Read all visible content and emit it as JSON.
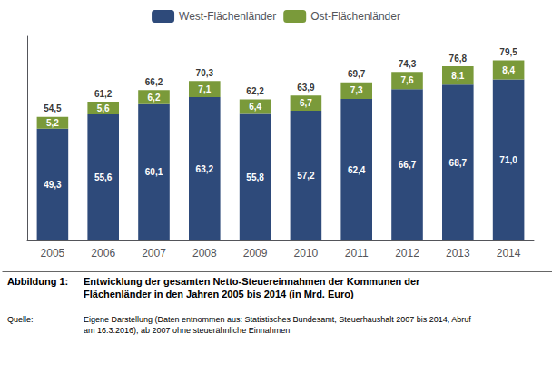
{
  "chart_data": {
    "type": "bar",
    "stacked": true,
    "categories": [
      "2005",
      "2006",
      "2007",
      "2008",
      "2009",
      "2010",
      "2011",
      "2012",
      "2013",
      "2014"
    ],
    "series": [
      {
        "name": "West-Flächenländer",
        "color": "#2E4A7A",
        "values": [
          49.3,
          55.6,
          60.1,
          63.2,
          55.8,
          57.2,
          62.4,
          66.7,
          68.7,
          71.0
        ],
        "value_labels": [
          "49,3",
          "55,6",
          "60,1",
          "63,2",
          "55,8",
          "57,2",
          "62,4",
          "66,7",
          "68,7",
          "71,0"
        ]
      },
      {
        "name": "Ost-Flächenländer",
        "color": "#7A9A3A",
        "values": [
          5.2,
          5.6,
          6.2,
          7.1,
          6.4,
          6.7,
          7.3,
          7.6,
          8.1,
          8.4
        ],
        "value_labels": [
          "5,2",
          "5,6",
          "6,2",
          "7,1",
          "6,4",
          "6,7",
          "7,3",
          "7,6",
          "8,1",
          "8,4"
        ]
      }
    ],
    "totals": [
      54.5,
      61.2,
      66.2,
      70.3,
      62.2,
      63.9,
      69.7,
      74.3,
      76.8,
      79.5
    ],
    "total_labels": [
      "54,5",
      "61,2",
      "66,2",
      "70,3",
      "62,2",
      "63,9",
      "69,7",
      "74,3",
      "76,8",
      "79,5"
    ],
    "data_labels": true,
    "ylim": [
      0,
      90
    ],
    "yticks": [],
    "tick_labels": "x",
    "grid": false,
    "legend": "top",
    "annotations": [
      "Abbildung 1:",
      "Entwicklung der gesamten Netto-Steuereinnahmen der Kommunen der\nFlächenländer in den Jahren 2005 bis 2014 (in Mrd. Euro)",
      "Quelle:",
      "Eigene Darstellung (Daten entnommen aus: Statistisches Bundesamt, Steuerhaushalt 2007 bis 2014, Abruf\nam 16.3.2016); ab 2007 ohne steuerähnliche Einnahmen"
    ]
  }
}
